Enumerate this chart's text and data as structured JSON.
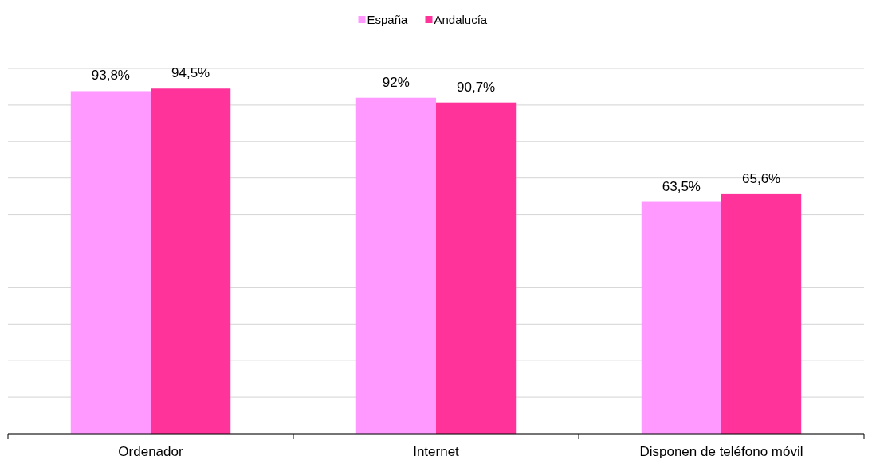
{
  "chart_data": {
    "type": "bar",
    "categories": [
      "Ordenador",
      "Internet",
      "Disponen de teléfono móvil"
    ],
    "series": [
      {
        "name": "España",
        "color": "#ff99ff",
        "values": [
          93.8,
          92,
          63.5
        ],
        "value_labels": [
          "93,8%",
          "92%",
          "63,5%"
        ]
      },
      {
        "name": "Andalucía",
        "color": "#ff3399",
        "values": [
          94.5,
          90.7,
          65.6
        ],
        "value_labels": [
          "94,5%",
          "90,7%",
          "65,6%"
        ]
      }
    ],
    "ylim": [
      0,
      100
    ],
    "yticks": [
      {
        "value": 0,
        "label": null
      },
      {
        "value": 10,
        "label": null
      },
      {
        "value": 20,
        "label": null
      },
      {
        "value": 30,
        "label": null
      },
      {
        "value": 40,
        "label": null
      },
      {
        "value": 50,
        "label": null
      },
      {
        "value": 60,
        "label": null
      },
      {
        "value": 70,
        "label": null
      },
      {
        "value": 80,
        "label": null
      },
      {
        "value": 90,
        "label": null
      },
      {
        "value": 100,
        "label": null
      }
    ],
    "tick_labels": "x",
    "grid": "y",
    "legend": "top"
  }
}
